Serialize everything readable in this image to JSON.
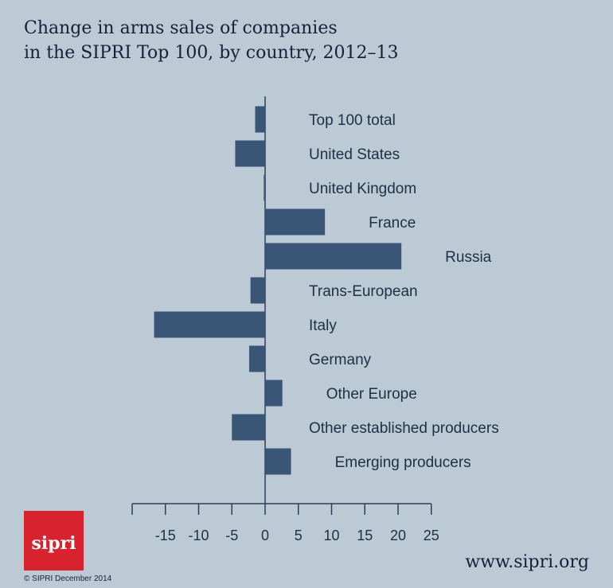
{
  "title": {
    "line1": "Change in arms sales of companies",
    "line2": "in the SIPRI Top 100, by country, 2012–13"
  },
  "logo_text": "sipri",
  "copyright": "© SIPRI December 2014",
  "website": "www.sipri.org",
  "colors": {
    "background": "#bccad6",
    "bar": "#3a5677",
    "axis": "#2b3f5c",
    "text": "#1f2f44",
    "logo": "#d8232f"
  },
  "chart_data": {
    "type": "bar",
    "orientation": "horizontal",
    "categories": [
      "Top 100 total",
      "United States",
      "United Kingdom",
      "France",
      "Russia",
      "Trans-European",
      "Italy",
      "Germany",
      "Other Europe",
      "Other established producers",
      "Emerging producers"
    ],
    "values": [
      -1.5,
      -4.5,
      -0.2,
      9.0,
      20.5,
      -2.2,
      -16.7,
      -2.4,
      2.6,
      -5.0,
      3.9
    ],
    "xlim": [
      -20,
      25
    ],
    "xticks": [
      -15,
      -10,
      -5,
      0,
      5,
      10,
      15,
      20,
      25
    ],
    "xtick_labels": [
      "-15",
      "-10",
      "-5",
      "0",
      "5",
      "10",
      "15",
      "20",
      "25"
    ],
    "xlabel": "",
    "ylabel": "",
    "grid": false
  }
}
